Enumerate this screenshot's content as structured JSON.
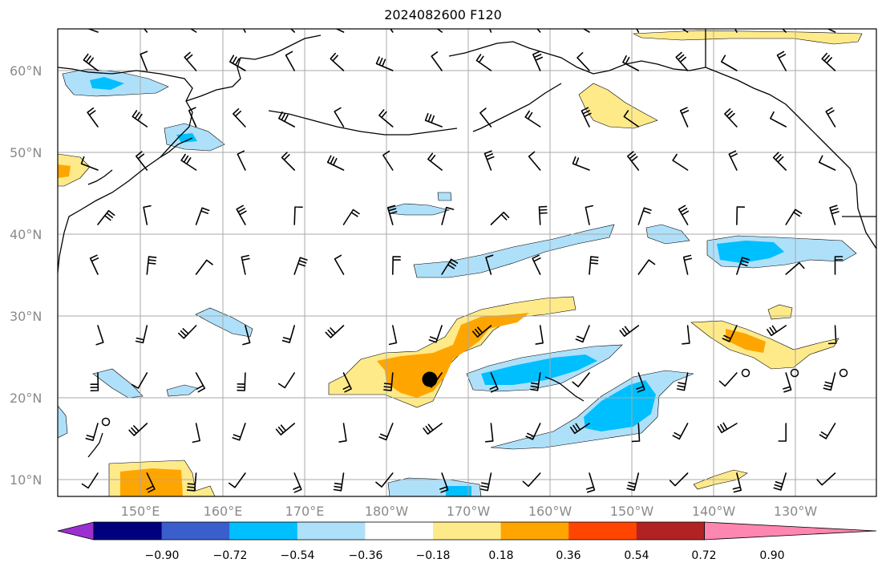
{
  "title": "2024082600 F120",
  "lat_labels": [
    "60°N",
    "50°N",
    "40°N",
    "30°N",
    "20°N",
    "10°N"
  ],
  "lon_labels": [
    "150°E",
    "160°E",
    "170°E",
    "180°W",
    "170°W",
    "160°W",
    "150°W",
    "140°W",
    "130°W"
  ],
  "colorbar": {
    "labels": [
      "−0.90",
      "−0.72",
      "−0.54",
      "−0.36",
      "−0.18",
      "0.18",
      "0.36",
      "0.54",
      "0.72",
      "0.90"
    ],
    "colors": [
      "#9b30d0",
      "#00007f",
      "#3a5fcd",
      "#00bfff",
      "#afe0fa",
      "#ffffff",
      "#ffea8a",
      "#ffa500",
      "#ff4500",
      "#b22222",
      "#ff86b0"
    ]
  },
  "colors": {
    "yellow": "#ffea8a",
    "orange": "#ffa500",
    "lightblue": "#afe0fa",
    "cyan": "#00bfff",
    "grid": "#a8a8a8",
    "coast": "#000000"
  },
  "storm_marker": {
    "label": "",
    "shape": "filled black circle"
  }
}
